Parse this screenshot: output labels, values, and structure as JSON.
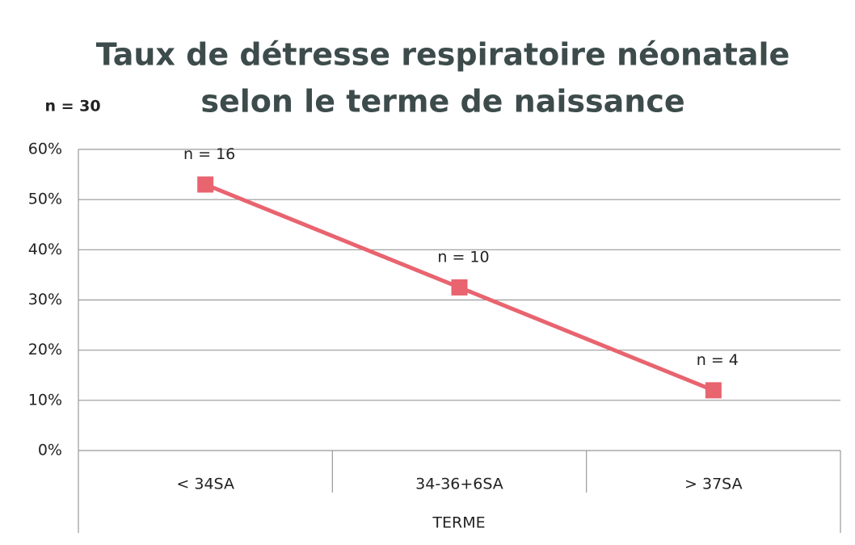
{
  "chart_data": {
    "type": "line",
    "title": [
      "Taux de détresse respiratoire néonatale",
      "selon le terme de naissance"
    ],
    "sample_note": "n = 30",
    "x_label": "TERME",
    "categories": [
      "< 34SA",
      "34-36+6SA",
      "> 37SA"
    ],
    "series": [
      {
        "name": "Taux",
        "color": "#e8646f",
        "values": [
          53,
          32.5,
          12
        ]
      }
    ],
    "point_annotations": [
      "n = 16",
      "n = 10",
      "n = 4"
    ],
    "ylim": [
      0,
      60
    ],
    "yticks": [
      {
        "value": 0,
        "label": "0%"
      },
      {
        "value": 10,
        "label": "10%"
      },
      {
        "value": 20,
        "label": "20%"
      },
      {
        "value": 30,
        "label": "30%"
      },
      {
        "value": 40,
        "label": "40%"
      },
      {
        "value": 50,
        "label": "50%"
      },
      {
        "value": 60,
        "label": "60%"
      }
    ],
    "grid": true
  }
}
